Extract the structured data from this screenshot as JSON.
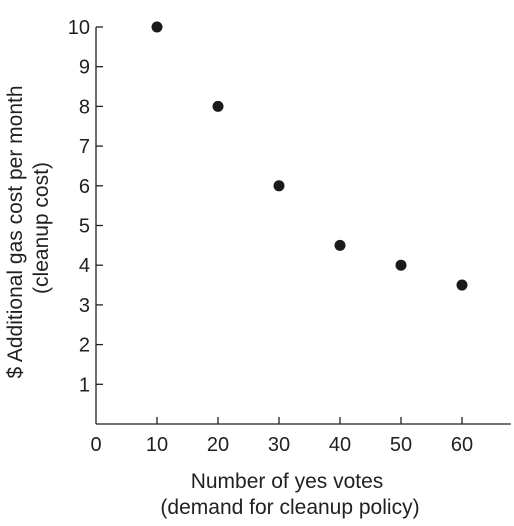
{
  "chart_data": {
    "type": "scatter",
    "title": "",
    "xlabel": "Number of yes votes",
    "xlabel_sub": "(demand for cleanup policy)",
    "ylabel": "$ Additional gas cost per month",
    "ylabel_sub": "(cleanup cost)",
    "xlim": [
      0,
      68
    ],
    "ylim": [
      0,
      10
    ],
    "xticks": [
      0,
      10,
      20,
      30,
      40,
      50,
      60
    ],
    "yticks": [
      1,
      2,
      3,
      4,
      5,
      6,
      7,
      8,
      9,
      10
    ],
    "grid": false,
    "legend": "none",
    "colors": {
      "points": "#1a1a1a",
      "axes": "#231f20",
      "text": "#231f20"
    },
    "points": [
      {
        "x": 10,
        "y": 10
      },
      {
        "x": 20,
        "y": 8
      },
      {
        "x": 30,
        "y": 6
      },
      {
        "x": 40,
        "y": 4.5
      },
      {
        "x": 50,
        "y": 4
      },
      {
        "x": 60,
        "y": 3.5
      }
    ]
  }
}
